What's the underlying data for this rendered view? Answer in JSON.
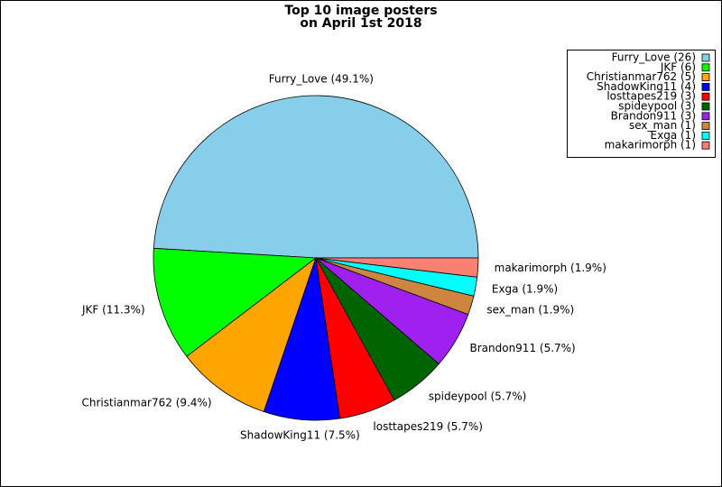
{
  "chart_data": {
    "type": "pie",
    "title": [
      "Top 10 image posters",
      "on April 1st 2018"
    ],
    "categories": [
      "Furry_Love",
      "JKF",
      "Christianmar762",
      "ShadowKing11",
      "losttapes219",
      "spideypool",
      "Brandon911",
      "sex_man",
      "Exga",
      "makarimorph"
    ],
    "values": [
      26,
      6,
      5,
      4,
      3,
      3,
      3,
      1,
      1,
      1
    ],
    "slice_labels": [
      "Furry_Love (49.1%)",
      "JKF (11.3%)",
      "Christianmar762 (9.4%)",
      "ShadowKing11 (7.5%)",
      "losttapes219 (5.7%)",
      "spideypool (5.7%)",
      "Brandon911 (5.7%)",
      "sex_man (1.9%)",
      "Exga (1.9%)",
      "makarimorph (1.9%)"
    ],
    "legend_labels": [
      "Furry_Love (26)",
      "JKF (6)",
      "Christianmar762 (5)",
      "ShadowKing11 (4)",
      "losttapes219 (3)",
      "spideypool (3)",
      "Brandon911 (3)",
      "sex_man (1)",
      "Exga (1)",
      "makarimorph (1)"
    ],
    "colors": [
      "#87ceeb",
      "#00ff00",
      "#ffa500",
      "#0000ff",
      "#ff0000",
      "#006400",
      "#a020f0",
      "#cd853f",
      "#00ffff",
      "#fa8072"
    ],
    "legend": "upper right"
  }
}
